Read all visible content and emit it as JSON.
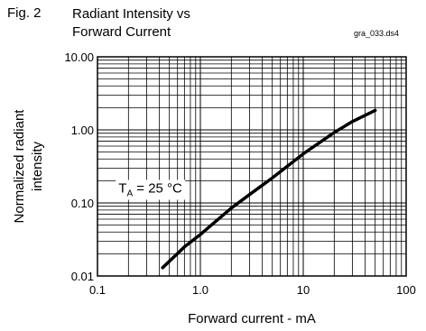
{
  "figure": {
    "label": "Fig. 2",
    "title_line1": "Radiant Intensity vs",
    "title_line2": "Forward Current",
    "code": "gra_033.ds4"
  },
  "chart_data": {
    "type": "line",
    "xlabel": "Forward current - mA",
    "ylabel_line1": "Normalized radiant",
    "ylabel_line2": "intensity",
    "x_scale": "log",
    "y_scale": "log",
    "xlim": [
      0.1,
      100
    ],
    "ylim": [
      0.01,
      10
    ],
    "x_ticks": [
      0.1,
      1,
      10,
      100
    ],
    "x_tick_labels": [
      "0.1",
      "1.0",
      "10",
      "100"
    ],
    "y_ticks": [
      0.01,
      0.1,
      1,
      10
    ],
    "y_tick_labels": [
      "0.01",
      "0.10",
      "1.00",
      "10.00"
    ],
    "grid": true,
    "annotation": {
      "main": "T",
      "subscript": "A",
      "rest": " = 25 °C",
      "x": 0.16,
      "y": 0.16
    },
    "series": [
      {
        "x": [
          0.43,
          0.7,
          1.0,
          2.0,
          3.0,
          5.0,
          10,
          20,
          30,
          50
        ],
        "y": [
          0.013,
          0.025,
          0.037,
          0.085,
          0.13,
          0.22,
          0.47,
          0.92,
          1.3,
          1.85
        ]
      }
    ]
  }
}
